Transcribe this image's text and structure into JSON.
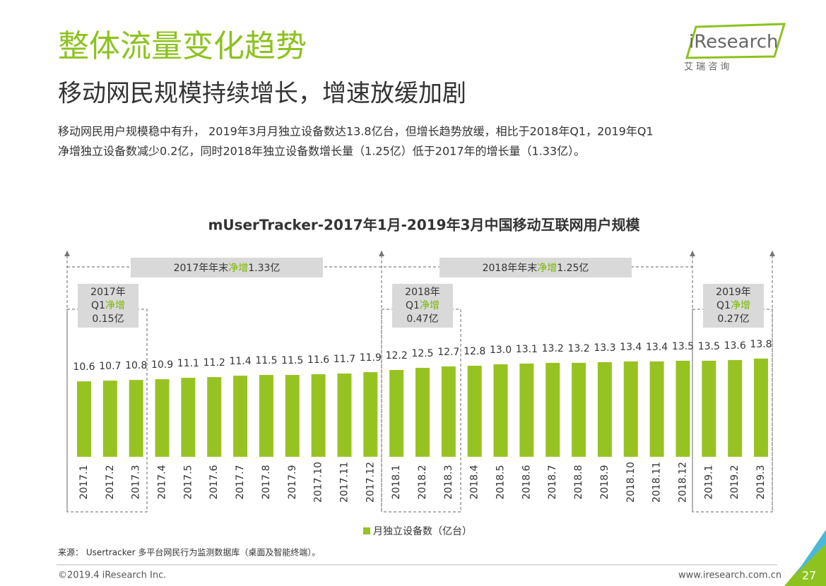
{
  "header": {
    "title": "整体流量变化趋势",
    "subtitle": "移动网民规模持续增长，增速放缓加剧",
    "body": [
      "移动网民用户规模稳中有升， 2019年3月月独立设备数达13.8亿台，但增长趋势放缓，相比于2018年Q1，2019年Q1",
      "净增独立设备数减少0.2亿，同时2018年独立设备数增长量（1.25亿）低于2017年的增长量（1.33亿）。"
    ],
    "logo": "iResearch",
    "logo_sub": "艾 瑞 咨 询"
  },
  "chart_data": {
    "type": "bar",
    "title": "mUserTracker-2017年1月-2019年3月中国移动互联网用户规模",
    "categories": [
      "2017.1",
      "2017.2",
      "2017.3",
      "2017.4",
      "2017.5",
      "2017.6",
      "2017.7",
      "2017.8",
      "2017.9",
      "2017.10",
      "2017.11",
      "2017.12",
      "2018.1",
      "2018.2",
      "2018.3",
      "2018.4",
      "2018.5",
      "2018.6",
      "2018.7",
      "2018.8",
      "2018.9",
      "2018.10",
      "2018.11",
      "2018.12",
      "2019.1",
      "2019.2",
      "2019.3"
    ],
    "series": [
      {
        "name": "月独立设备数（亿台）",
        "color": "#97c322",
        "values": [
          10.6,
          10.7,
          10.8,
          10.9,
          11.1,
          11.2,
          11.4,
          11.5,
          11.5,
          11.6,
          11.7,
          11.9,
          12.2,
          12.5,
          12.7,
          12.8,
          13.0,
          13.1,
          13.2,
          13.2,
          13.3,
          13.4,
          13.4,
          13.5,
          13.5,
          13.6,
          13.8
        ],
        "value_labels": [
          "10.6",
          "10.7",
          "10.8",
          "10.9",
          "11.1",
          "11.2",
          "11.4",
          "11.5",
          "11.5",
          "11.6",
          "11.7",
          "11.9",
          "12.2",
          "12.5",
          "12.7",
          "12.8",
          "13.0",
          "13.1",
          "13.2",
          "13.2",
          "13.3",
          "13.4",
          "13.4",
          "13.5",
          "13.5",
          "13.6",
          "13.8"
        ]
      }
    ],
    "annotations": [
      {
        "parts": [
          "2017年年末",
          "净增",
          "1.33亿"
        ]
      },
      {
        "parts": [
          "2018年年末",
          "净增",
          "1.25亿"
        ]
      }
    ],
    "quarter_notes": [
      {
        "lines": [
          [
            "2017年"
          ],
          [
            "Q1",
            "净增"
          ],
          [
            "0.15亿"
          ]
        ]
      },
      {
        "lines": [
          [
            "2018年"
          ],
          [
            "Q1",
            "净增"
          ],
          [
            "0.47亿"
          ]
        ]
      },
      {
        "lines": [
          [
            "2019年"
          ],
          [
            "Q1",
            "净增"
          ],
          [
            "0.27亿"
          ]
        ]
      }
    ],
    "highlight_color": "#7ab800"
  },
  "footer": {
    "source": "来源： Usertracker 多平台网民行为监测数据库（桌面及智能终端）。",
    "copyright": "©2019.4 iResearch Inc.",
    "url": "www.iresearch.com.cn",
    "page": "27"
  }
}
